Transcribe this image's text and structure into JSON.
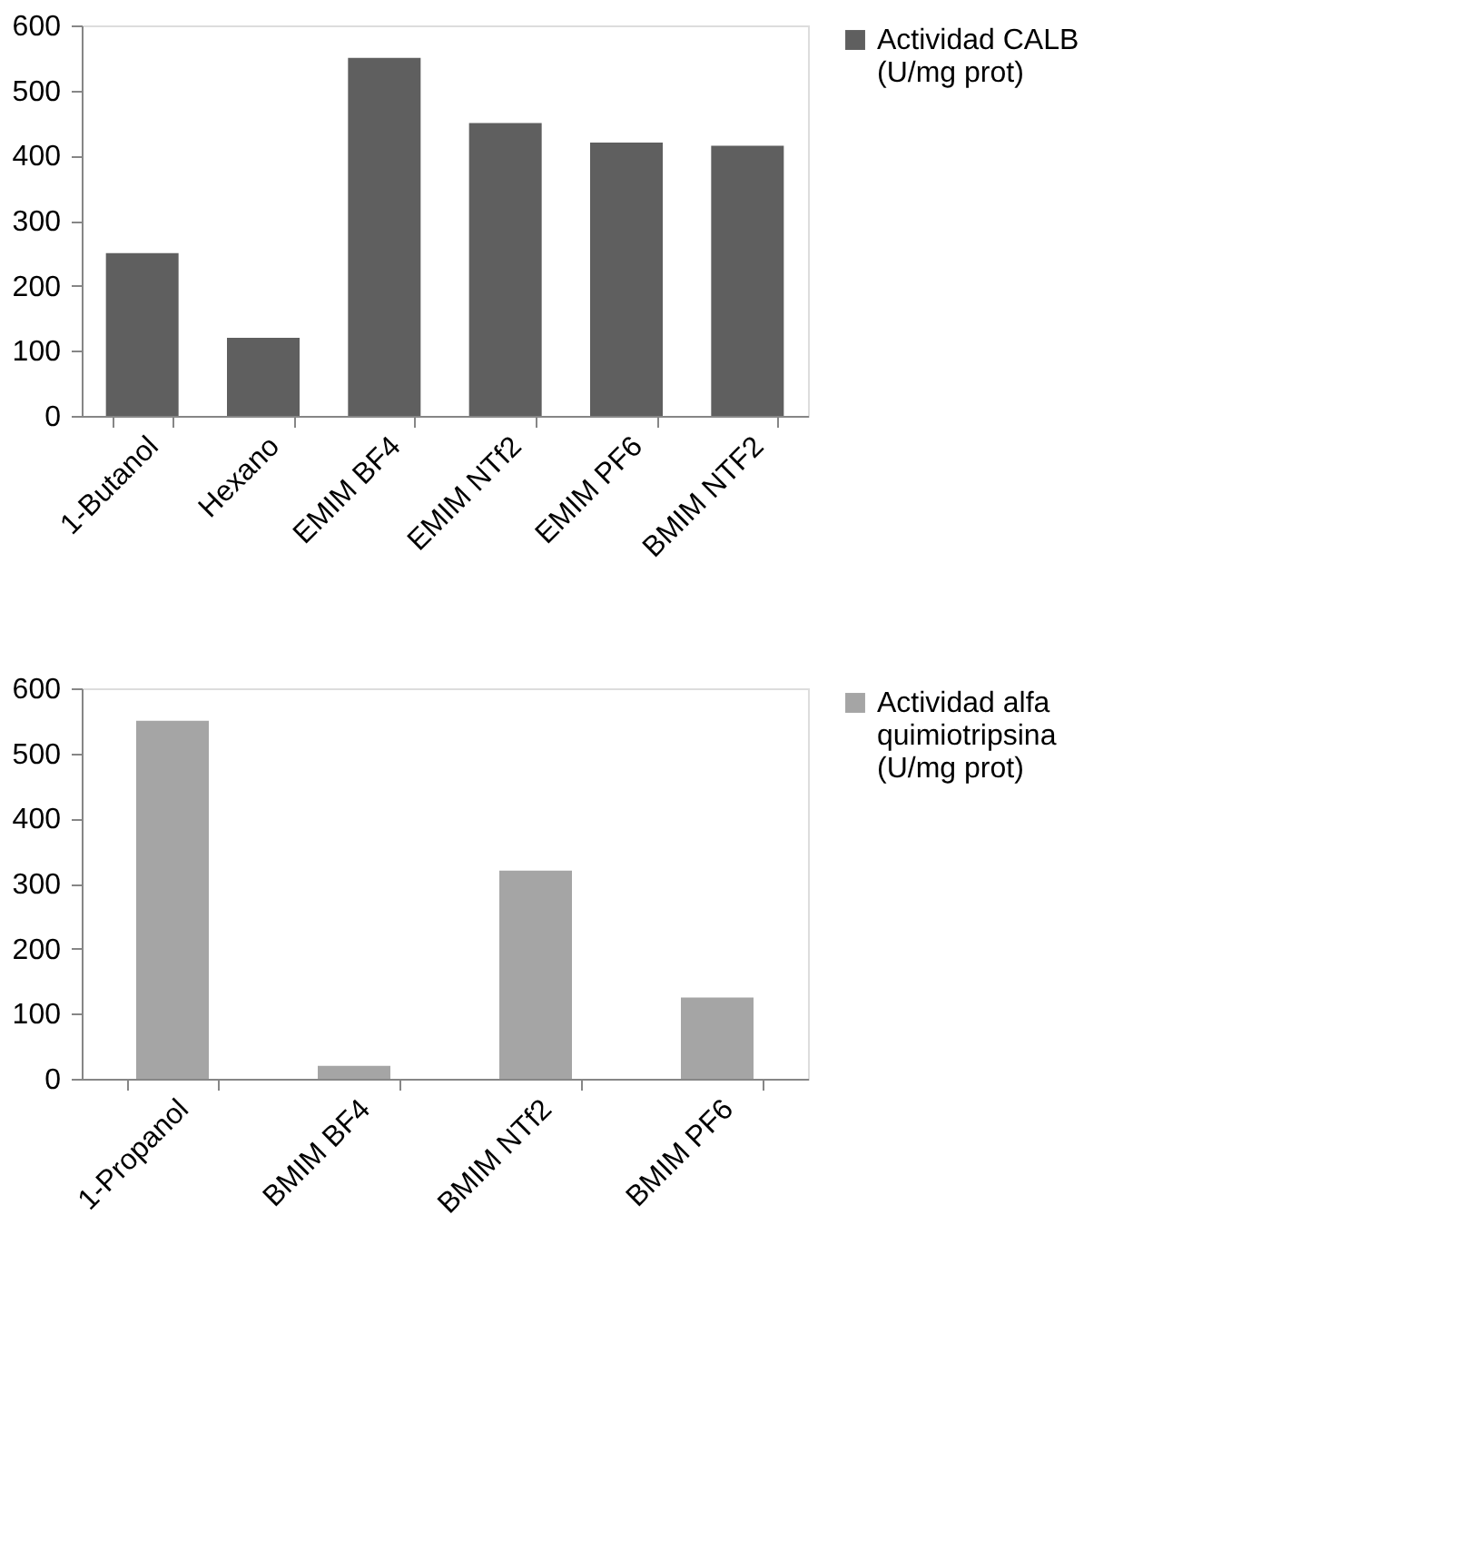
{
  "chart_data": [
    {
      "type": "bar",
      "categories": [
        "1-Butanol",
        "Hexano",
        "EMIM BF4",
        "EMIM NTf2",
        "EMIM PF6",
        "BMIM NTF2"
      ],
      "series": [
        {
          "name": "Actividad CALB (U/mg prot)",
          "color": "#5f5f5f",
          "values": [
            250,
            120,
            550,
            450,
            420,
            415
          ]
        }
      ],
      "ylim": [
        0,
        600
      ],
      "yticks": [
        0,
        100,
        200,
        300,
        400,
        500,
        600
      ],
      "grid": false,
      "legend": "right"
    },
    {
      "type": "bar",
      "categories": [
        "1-Propanol",
        "BMIM BF4",
        "BMIM NTf2",
        "BMIM PF6"
      ],
      "series": [
        {
          "name": "Actividad alfa quimiotripsina (U/mg prot)",
          "color": "#a5a5a5",
          "values": [
            550,
            20,
            320,
            125
          ]
        }
      ],
      "ylim": [
        0,
        600
      ],
      "yticks": [
        0,
        100,
        200,
        300,
        400,
        500,
        600
      ],
      "grid": false,
      "legend": "right"
    }
  ]
}
